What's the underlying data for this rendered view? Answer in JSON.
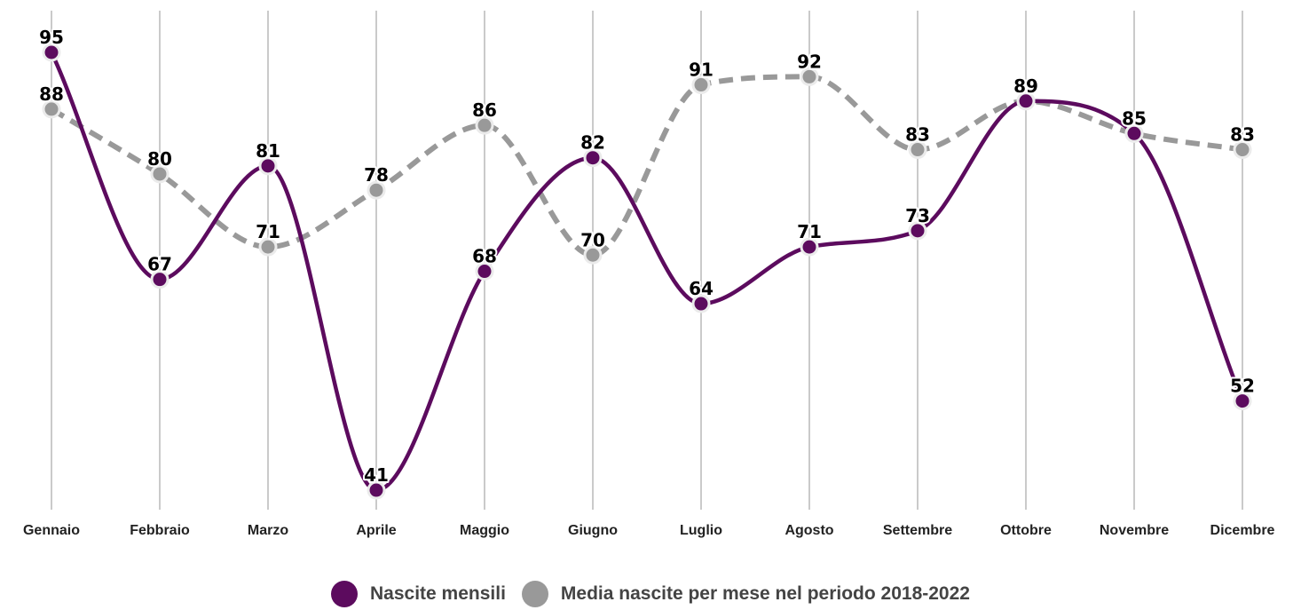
{
  "chart_data": {
    "type": "line",
    "categories": [
      "Gennaio",
      "Febbraio",
      "Marzo",
      "Aprile",
      "Maggio",
      "Giugno",
      "Luglio",
      "Agosto",
      "Settembre",
      "Ottobre",
      "Novembre",
      "Dicembre"
    ],
    "series": [
      {
        "name": "Nascite mensili",
        "values": [
          95,
          67,
          81,
          41,
          68,
          82,
          64,
          71,
          73,
          89,
          85,
          52
        ],
        "color": "#5c0b5e",
        "style": "solid"
      },
      {
        "name": "Media nascite per mese nel periodo 2018-2022",
        "values": [
          88,
          80,
          71,
          78,
          86,
          70,
          91,
          92,
          83,
          89,
          85,
          83
        ],
        "color": "#999999",
        "style": "dashed"
      }
    ],
    "grid": "vertical",
    "legend_position": "bottom-center",
    "smooth": true
  }
}
